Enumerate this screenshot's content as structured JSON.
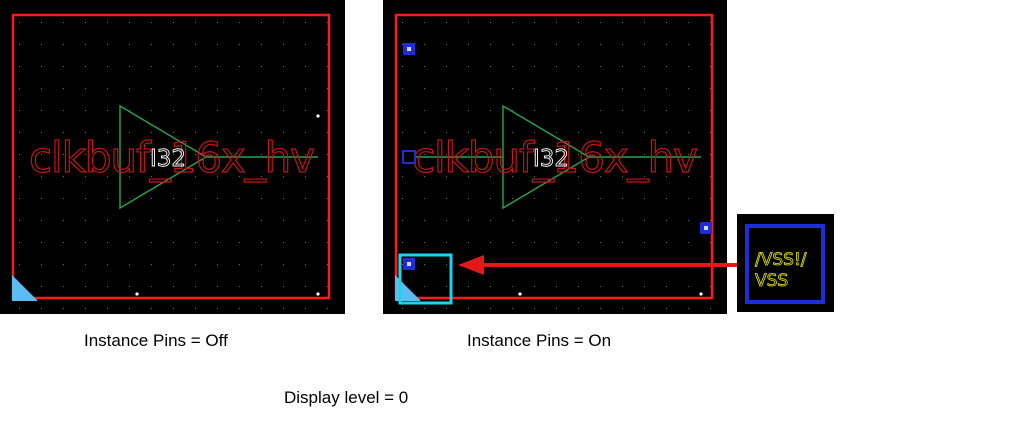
{
  "colors": {
    "background": "#000000",
    "boundary": "#ff1a1a",
    "symbol": "#22a84a",
    "instance_name_text": "#ffffff",
    "cell_name_text": "#c81414",
    "pin": "#1c2ed8",
    "pin_center": "#d7d2ff",
    "origin_marker": "#5bbcf2",
    "highlight": "#19d6f0",
    "arrow": "#e31818",
    "pin_label": "#e8e800",
    "grid_dot": "#6c6c6c"
  },
  "icons": {
    "origin_marker": "origin-triangle-icon",
    "pin_marker": "pin-square-icon"
  },
  "panels": {
    "left": {
      "cell_name": "clkbuf_16x_hv",
      "instance_name": "I32",
      "caption": "Instance Pins = Off"
    },
    "right": {
      "cell_name": "clkbuf_16x_hv",
      "instance_name": "I32",
      "caption": "Instance Pins = On"
    }
  },
  "zoom": {
    "pin_label_line1": "/VSS!/",
    "pin_label_line2": "VSS"
  },
  "footer": {
    "caption": "Display level = 0"
  }
}
